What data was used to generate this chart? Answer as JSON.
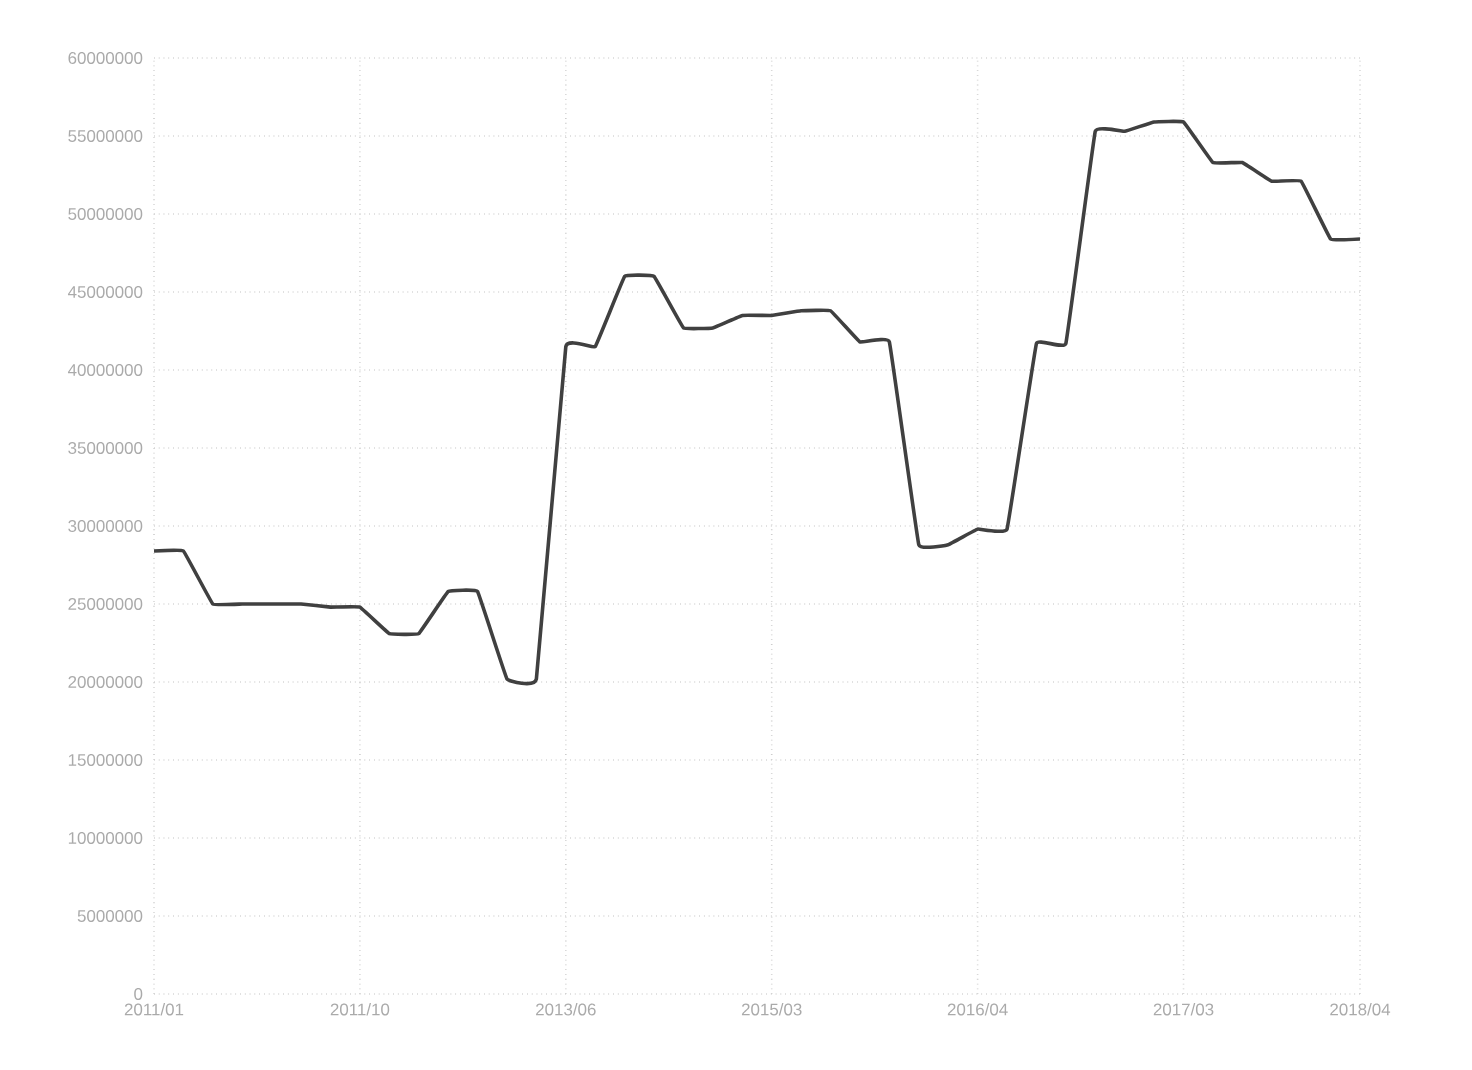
{
  "chart_data": {
    "type": "line",
    "categories": [
      "2011/01",
      null,
      null,
      null,
      null,
      null,
      null,
      "2011/10",
      null,
      null,
      null,
      null,
      null,
      null,
      "2013/06",
      null,
      null,
      null,
      null,
      null,
      null,
      "2015/03",
      null,
      null,
      null,
      null,
      null,
      null,
      "2016/04",
      null,
      null,
      null,
      null,
      null,
      null,
      "2017/03",
      null,
      null,
      null,
      null,
      null,
      "2018/04"
    ],
    "series": [
      {
        "color": "#404040",
        "values": [
          28400000,
          28400000,
          25000000,
          25000000,
          25000000,
          25000000,
          24800000,
          24800000,
          23100000,
          23100000,
          25800000,
          25800000,
          20200000,
          20200000,
          41500000,
          41500000,
          46000000,
          46000000,
          42700000,
          42700000,
          43500000,
          43500000,
          43800000,
          43800000,
          41800000,
          41800000,
          28800000,
          28800000,
          29800000,
          29800000,
          41700000,
          41700000,
          55300000,
          55300000,
          55900000,
          55900000,
          53300000,
          53300000,
          52100000,
          52100000,
          48400000,
          48400000
        ]
      }
    ],
    "ylim": [
      0,
      60000000
    ],
    "yticks": [
      0,
      5000000,
      10000000,
      15000000,
      20000000,
      25000000,
      30000000,
      35000000,
      40000000,
      45000000,
      50000000,
      55000000,
      60000000
    ],
    "grid": true,
    "marker": "none",
    "line_style": "solid"
  }
}
